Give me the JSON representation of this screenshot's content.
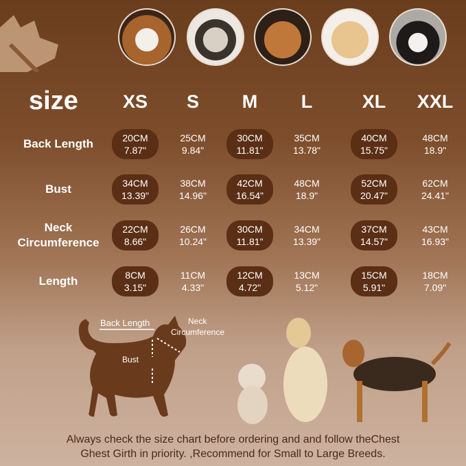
{
  "header": {
    "size_label": "size",
    "sizes": [
      "XS",
      "S",
      "M",
      "L",
      "XL",
      "XXL"
    ]
  },
  "rows": [
    {
      "label": "Back Length",
      "cells": [
        [
          "20CM",
          "7.87\""
        ],
        [
          "25CM",
          "9.84\""
        ],
        [
          "30CM",
          "11.81\""
        ],
        [
          "35CM",
          "13.78\""
        ],
        [
          "40CM",
          "15.75\""
        ],
        [
          "48CM",
          "18.9\""
        ]
      ]
    },
    {
      "label": "Bust",
      "cells": [
        [
          "34CM",
          "13.39\""
        ],
        [
          "38CM",
          "14.96\""
        ],
        [
          "42CM",
          "16.54\""
        ],
        [
          "48CM",
          "18.9\""
        ],
        [
          "52CM",
          "20.47\""
        ],
        [
          "62CM",
          "24.41\""
        ]
      ]
    },
    {
      "label": "Neck Circumference",
      "cells": [
        [
          "22CM",
          "8.66\""
        ],
        [
          "26CM",
          "10.24\""
        ],
        [
          "30CM",
          "11.81\""
        ],
        [
          "34CM",
          "13.39\""
        ],
        [
          "37CM",
          "14.57\""
        ],
        [
          "43CM",
          "16.93\""
        ]
      ]
    },
    {
      "label": "Length",
      "cells": [
        [
          "8CM",
          "3.15\""
        ],
        [
          "11CM",
          "4.33\""
        ],
        [
          "12CM",
          "4.72\""
        ],
        [
          "13CM",
          "5.12\""
        ],
        [
          "15CM",
          "5.91\""
        ],
        [
          "18CM",
          "7.09\""
        ]
      ]
    }
  ],
  "diagram": {
    "back_length": "Back Length",
    "neck_line1": "Neck",
    "neck_line2": "Circumference",
    "bust": "Bust"
  },
  "footer": {
    "line1": "Always check the size chart before ordering and and follow theChest",
    "line2": "Ghest Girth in priority. ,Recommend for Small to Large Breeds."
  },
  "colors": {
    "pill": "#5b2f15",
    "text": "#ffffff",
    "footer_text": "#4a2a18"
  }
}
